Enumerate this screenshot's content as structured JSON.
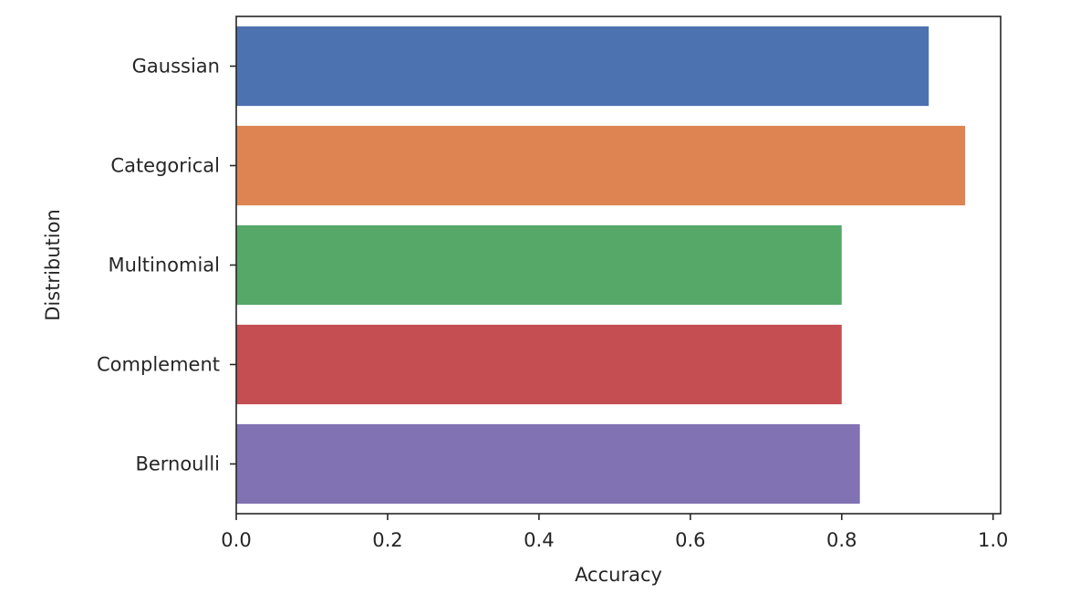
{
  "chart_data": {
    "type": "bar",
    "orientation": "horizontal",
    "title": "",
    "xlabel": "Accuracy",
    "ylabel": "Distribution",
    "categories": [
      "Gaussian",
      "Categorical",
      "Multinomial",
      "Complement",
      "Bernoulli"
    ],
    "values": [
      0.915,
      0.963,
      0.8,
      0.8,
      0.824
    ],
    "colors": [
      "#4c72b0",
      "#dd8452",
      "#55a868",
      "#c44e52",
      "#8172b3"
    ],
    "xlim": [
      0.0,
      1.01
    ],
    "xticks": [
      0.0,
      0.2,
      0.4,
      0.6,
      0.8,
      1.0
    ],
    "xtick_labels": [
      "0.0",
      "0.2",
      "0.4",
      "0.6",
      "0.8",
      "1.0"
    ],
    "grid": false,
    "legend": false
  }
}
